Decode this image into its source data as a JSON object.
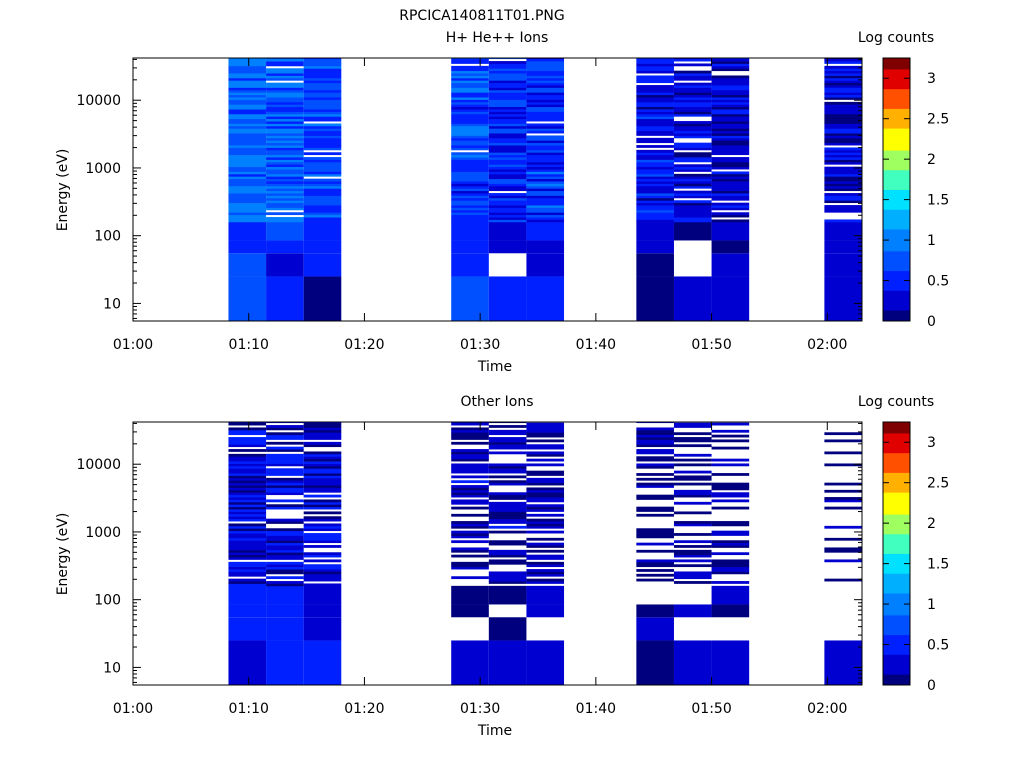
{
  "figure": {
    "title": "RPCICA140811T01.PNG"
  },
  "palette": [
    "#00007f",
    "#0000d0",
    "#0020ff",
    "#0050ff",
    "#0080ff",
    "#00b0ff",
    "#00e0ff",
    "#40ffbf",
    "#a0ff60",
    "#ffff00",
    "#ffb000",
    "#ff5000",
    "#e00000",
    "#7f0000"
  ],
  "chart_data": [
    {
      "type": "heatmap",
      "title": "H+ He++ Ions",
      "xlabel": "Time",
      "ylabel": "Energy (eV)",
      "colorbar_label": "Log counts",
      "x_ticks": [
        "01:00",
        "01:10",
        "01:20",
        "01:30",
        "01:40",
        "01:50",
        "02:00"
      ],
      "x_range": [
        "01:00",
        "02:03"
      ],
      "y_scale": "log",
      "y_range": [
        5.5,
        42000
      ],
      "y_ticks": [
        10,
        100,
        1000,
        10000
      ],
      "y_tick_labels": [
        "10",
        "100",
        "1000",
        "10000"
      ],
      "c_range": [
        0,
        3.25
      ],
      "c_ticks": [
        0,
        0.5,
        1,
        1.5,
        2,
        2.5,
        3
      ],
      "c_tick_labels": [
        "0",
        "0.5",
        "1",
        "1.5",
        "2",
        "2.5",
        "3"
      ],
      "columns": [
        {
          "start": "01:08:15",
          "end": "01:11:30",
          "low_bands": [
            [
              5.5,
              25,
              0.7
            ],
            [
              25,
              55,
              0.75
            ],
            [
              55,
              85,
              0.55
            ],
            [
              85,
              160,
              0.55
            ]
          ],
          "high_seed": 3,
          "high_mean": 0.85,
          "high_spread": 0.25,
          "gap_prob": 0.03
        },
        {
          "start": "01:11:30",
          "end": "01:14:45",
          "low_bands": [
            [
              5.5,
              25,
              0.6
            ],
            [
              25,
              55,
              0.2
            ],
            [
              55,
              85,
              0.6
            ],
            [
              85,
              160,
              0.65
            ]
          ],
          "high_seed": 7,
          "high_mean": 0.75,
          "high_spread": 0.3,
          "gap_prob": 0.06
        },
        {
          "start": "01:14:45",
          "end": "01:18:00",
          "low_bands": [
            [
              5.5,
              25,
              0.02
            ],
            [
              25,
              55,
              0.55
            ],
            [
              55,
              85,
              0.55
            ],
            [
              85,
              160,
              0.5
            ]
          ],
          "high_seed": 11,
          "high_mean": 0.7,
          "high_spread": 0.3,
          "gap_prob": 0.05
        },
        {
          "start": "01:27:30",
          "end": "01:30:45",
          "low_bands": [
            [
              5.5,
              25,
              0.7
            ],
            [
              25,
              55,
              0.45
            ],
            [
              55,
              85,
              0.5
            ],
            [
              85,
              160,
              0.45
            ]
          ],
          "high_seed": 13,
          "high_mean": 0.65,
          "high_spread": 0.3,
          "gap_prob": 0.02
        },
        {
          "start": "01:30:45",
          "end": "01:34:00",
          "low_bands": [
            [
              5.5,
              25,
              0.4
            ],
            [
              25,
              55,
              null
            ],
            [
              55,
              85,
              0.35
            ],
            [
              85,
              160,
              0.3
            ]
          ],
          "high_seed": 17,
          "high_mean": 0.5,
          "high_spread": 0.35,
          "gap_prob": 0.04
        },
        {
          "start": "01:34:00",
          "end": "01:37:15",
          "low_bands": [
            [
              5.5,
              25,
              0.6
            ],
            [
              25,
              55,
              0.15
            ],
            [
              55,
              85,
              0.3
            ],
            [
              85,
              160,
              0.4
            ]
          ],
          "high_seed": 19,
          "high_mean": 0.55,
          "high_spread": 0.35,
          "gap_prob": 0.03
        },
        {
          "start": "01:43:30",
          "end": "01:46:45",
          "low_bands": [
            [
              5.5,
              25,
              0.02
            ],
            [
              25,
              55,
              0.02
            ],
            [
              55,
              85,
              0.25
            ],
            [
              85,
              160,
              0.3
            ]
          ],
          "high_seed": 23,
          "high_mean": 0.4,
          "high_spread": 0.3,
          "gap_prob": 0.05
        },
        {
          "start": "01:46:45",
          "end": "01:50:00",
          "low_bands": [
            [
              5.5,
              25,
              0.15
            ],
            [
              25,
              55,
              null
            ],
            [
              55,
              85,
              null
            ],
            [
              85,
              160,
              0.1
            ]
          ],
          "high_seed": 29,
          "high_mean": 0.3,
          "high_spread": 0.3,
          "gap_prob": 0.14
        },
        {
          "start": "01:50:00",
          "end": "01:53:15",
          "low_bands": [
            [
              5.5,
              25,
              0.15
            ],
            [
              25,
              55,
              0.2
            ],
            [
              55,
              85,
              0.02
            ],
            [
              85,
              160,
              0.2
            ]
          ],
          "high_seed": 31,
          "high_mean": 0.25,
          "high_spread": 0.3,
          "gap_prob": 0.12
        },
        {
          "start": "01:59:45",
          "end": "02:03:00",
          "low_bands": [
            [
              5.5,
              25,
              0.25
            ],
            [
              25,
              55,
              0.25
            ],
            [
              55,
              85,
              0.25
            ],
            [
              85,
              160,
              0.35
            ]
          ],
          "high_seed": 37,
          "high_mean": 0.3,
          "high_spread": 0.3,
          "gap_prob": 0.18
        }
      ]
    },
    {
      "type": "heatmap",
      "title": "Other Ions",
      "xlabel": "Time",
      "ylabel": "Energy (eV)",
      "colorbar_label": "Log counts",
      "x_ticks": [
        "01:00",
        "01:10",
        "01:20",
        "01:30",
        "01:40",
        "01:50",
        "02:00"
      ],
      "x_range": [
        "01:00",
        "02:03"
      ],
      "y_scale": "log",
      "y_range": [
        5.5,
        42000
      ],
      "y_ticks": [
        10,
        100,
        1000,
        10000
      ],
      "y_tick_labels": [
        "10",
        "100",
        "1000",
        "10000"
      ],
      "c_range": [
        0,
        3.25
      ],
      "c_ticks": [
        0,
        0.5,
        1,
        1.5,
        2,
        2.5,
        3
      ],
      "c_tick_labels": [
        "0",
        "0.5",
        "1",
        "1.5",
        "2",
        "2.5",
        "3"
      ],
      "columns": [
        {
          "start": "01:08:15",
          "end": "01:11:30",
          "low_bands": [
            [
              5.5,
              25,
              0.2
            ],
            [
              25,
              55,
              0.45
            ],
            [
              55,
              85,
              0.4
            ],
            [
              85,
              160,
              0.5
            ]
          ],
          "high_seed": 41,
          "high_mean": 0.3,
          "high_spread": 0.3,
          "gap_prob": 0.12
        },
        {
          "start": "01:11:30",
          "end": "01:14:45",
          "low_bands": [
            [
              5.5,
              25,
              0.55
            ],
            [
              25,
              55,
              0.55
            ],
            [
              55,
              85,
              0.55
            ],
            [
              85,
              160,
              0.5
            ]
          ],
          "high_seed": 43,
          "high_mean": 0.3,
          "high_spread": 0.3,
          "gap_prob": 0.25
        },
        {
          "start": "01:14:45",
          "end": "01:18:00",
          "low_bands": [
            [
              5.5,
              25,
              0.45
            ],
            [
              25,
              55,
              0.3
            ],
            [
              55,
              85,
              0.15
            ],
            [
              85,
              160,
              0.25
            ]
          ],
          "high_seed": 47,
          "high_mean": 0.25,
          "high_spread": 0.3,
          "gap_prob": 0.22
        },
        {
          "start": "01:27:30",
          "end": "01:30:45",
          "low_bands": [
            [
              5.5,
              25,
              0.2
            ],
            [
              25,
              55,
              null
            ],
            [
              55,
              85,
              0.1
            ],
            [
              85,
              160,
              0.1
            ]
          ],
          "high_seed": 53,
          "high_mean": 0.15,
          "high_spread": 0.25,
          "gap_prob": 0.3
        },
        {
          "start": "01:30:45",
          "end": "01:34:00",
          "low_bands": [
            [
              5.5,
              25,
              0.2
            ],
            [
              25,
              55,
              0.02
            ],
            [
              55,
              85,
              null
            ],
            [
              85,
              160,
              0.1
            ]
          ],
          "high_seed": 59,
          "high_mean": 0.15,
          "high_spread": 0.25,
          "gap_prob": 0.35
        },
        {
          "start": "01:34:00",
          "end": "01:37:15",
          "low_bands": [
            [
              5.5,
              25,
              0.3
            ],
            [
              25,
              55,
              null
            ],
            [
              55,
              85,
              0.2
            ],
            [
              85,
              160,
              0.2
            ]
          ],
          "high_seed": 61,
          "high_mean": 0.15,
          "high_spread": 0.25,
          "gap_prob": 0.38
        },
        {
          "start": "01:43:30",
          "end": "01:46:45",
          "low_bands": [
            [
              5.5,
              25,
              0.02
            ],
            [
              25,
              55,
              0.3
            ],
            [
              55,
              85,
              0.05
            ],
            [
              85,
              160,
              null
            ]
          ],
          "high_seed": 67,
          "high_mean": 0.1,
          "high_spread": 0.2,
          "gap_prob": 0.45
        },
        {
          "start": "01:46:45",
          "end": "01:50:00",
          "low_bands": [
            [
              5.5,
              25,
              0.35
            ],
            [
              25,
              55,
              null
            ],
            [
              55,
              85,
              0.15
            ],
            [
              85,
              160,
              null
            ]
          ],
          "high_seed": 71,
          "high_mean": 0.1,
          "high_spread": 0.2,
          "gap_prob": 0.5
        },
        {
          "start": "01:50:00",
          "end": "01:53:15",
          "low_bands": [
            [
              5.5,
              25,
              0.3
            ],
            [
              25,
              55,
              null
            ],
            [
              55,
              85,
              0.05
            ],
            [
              85,
              160,
              0.15
            ]
          ],
          "high_seed": 73,
          "high_mean": 0.1,
          "high_spread": 0.2,
          "gap_prob": 0.55
        },
        {
          "start": "01:59:45",
          "end": "02:03:00",
          "low_bands": [
            [
              5.5,
              25,
              0.2
            ],
            [
              25,
              55,
              null
            ],
            [
              55,
              85,
              null
            ],
            [
              85,
              160,
              null
            ]
          ],
          "high_seed": 79,
          "high_mean": 0.05,
          "high_spread": 0.15,
          "gap_prob": 0.75
        }
      ]
    }
  ]
}
